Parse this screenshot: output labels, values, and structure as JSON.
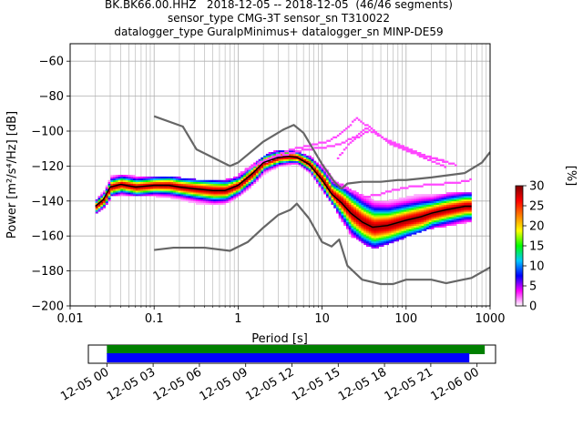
{
  "title": {
    "line1": "BK.BK66.00.HHZ   2018-12-05 -- 2018-12-05  (46/46 segments)",
    "line2": "sensor_type CMG-3T sensor_sn T310022",
    "line3": "datalogger_type GuralpMinimus+ datalogger_sn MINP-DE59"
  },
  "chart_data": [
    {
      "type": "heatmap",
      "xlabel": "Period [s]",
      "ylabel": "Power [m²/s⁴/Hz] [dB]",
      "xscale": "log",
      "xlim": [
        0.01,
        1000
      ],
      "ylim": [
        -200,
        -50
      ],
      "grid": true,
      "xticks": [
        "0.01",
        "0.1",
        "1",
        "10",
        "100",
        "1000"
      ],
      "xtick_values": [
        0.01,
        0.1,
        1,
        10,
        100,
        1000
      ],
      "yticks": [
        "−200",
        "−180",
        "−160",
        "−140",
        "−120",
        "−100",
        "−80",
        "−60"
      ],
      "ytick_values": [
        -200,
        -180,
        -160,
        -140,
        -120,
        -100,
        -80,
        -60
      ],
      "colorbar": {
        "label": "[%]",
        "range": [
          0,
          30
        ],
        "ticks": [
          "0",
          "5",
          "10",
          "15",
          "20",
          "25",
          "30"
        ],
        "tick_values": [
          0,
          5,
          10,
          15,
          20,
          25,
          30
        ],
        "colors": [
          "#ffffff",
          "#ff00ff",
          "#0000ff",
          "#00c8ff",
          "#00ff00",
          "#ffff00",
          "#ff8000",
          "#ff0000",
          "#800000"
        ]
      },
      "nlnm": {
        "color": "#666666",
        "period": [
          0.1,
          0.17,
          0.4,
          0.8,
          1.3,
          2.0,
          3.0,
          4.2,
          5.0,
          7.0,
          10,
          13,
          16,
          20,
          30,
          50,
          70,
          100,
          200,
          300,
          600,
          1000
        ],
        "power": [
          -168,
          -166.7,
          -166.7,
          -168.5,
          -163.5,
          -155.2,
          -148,
          -145,
          -141.5,
          -150,
          -163.5,
          -166,
          -162,
          -177,
          -185,
          -187.5,
          -187.5,
          -185,
          -185,
          -187,
          -184,
          -178
        ]
      },
      "nhnm": {
        "color": "#666666",
        "period": [
          0.1,
          0.22,
          0.32,
          0.8,
          1.0,
          2.0,
          3.5,
          4.6,
          6.0,
          10,
          14,
          17,
          20,
          30,
          50,
          80,
          100,
          200,
          500,
          800,
          1000
        ],
        "power": [
          -91.5,
          -97.4,
          -110.5,
          -120,
          -118,
          -106,
          -99,
          -96.5,
          -101,
          -119,
          -129,
          -133,
          -130,
          -129,
          -129,
          -128,
          -128,
          -126.5,
          -124,
          -118,
          -112
        ]
      },
      "mean": {
        "color": "#000000",
        "period": [
          0.02,
          0.025,
          0.03,
          0.04,
          0.06,
          0.1,
          0.15,
          0.2,
          0.3,
          0.5,
          0.7,
          1.0,
          1.5,
          2.0,
          3.0,
          4.0,
          5.0,
          7.0,
          10,
          13,
          17,
          22,
          30,
          40,
          60,
          100,
          150,
          200,
          300,
          500,
          600
        ],
        "power": [
          -143,
          -139,
          -132,
          -130.5,
          -132,
          -131,
          -131,
          -132,
          -133,
          -134,
          -134,
          -131,
          -124,
          -118,
          -115,
          -114.5,
          -115,
          -119,
          -128,
          -136,
          -141,
          -147,
          -152,
          -155,
          -154,
          -151,
          -149,
          -147,
          -145,
          -143,
          -143
        ]
      },
      "density_band": {
        "period": [
          0.02,
          0.025,
          0.03,
          0.04,
          0.06,
          0.1,
          0.15,
          0.2,
          0.3,
          0.5,
          0.7,
          1.0,
          1.5,
          2.0,
          3.0,
          4.0,
          5.0,
          7.0,
          10,
          13,
          17,
          22,
          30,
          40,
          60,
          100,
          150,
          200,
          300,
          500,
          600
        ],
        "low": [
          -147,
          -143,
          -137,
          -136,
          -137,
          -137,
          -138,
          -139,
          -141,
          -142,
          -141,
          -137,
          -130,
          -124,
          -120,
          -119,
          -119,
          -124,
          -134,
          -142,
          -152,
          -160,
          -164,
          -167,
          -164,
          -160,
          -157,
          -155,
          -154,
          -152,
          -152
        ],
        "high": [
          -139,
          -134,
          -126,
          -125,
          -126,
          -126,
          -126,
          -127,
          -128,
          -128,
          -128,
          -126,
          -119,
          -114,
          -111,
          -111,
          -112,
          -115,
          -121,
          -128,
          -131,
          -134,
          -137,
          -140,
          -140,
          -138,
          -136,
          -137,
          -136,
          -135,
          -135
        ]
      },
      "outlier_curves": [
        {
          "period": [
            1,
            2,
            4,
            8,
            12,
            18,
            25,
            40,
            60,
            100,
            200,
            400
          ],
          "power": [
            -125,
            -117,
            -111,
            -108,
            -106,
            -100,
            -93,
            -100,
            -107,
            -112,
            -116,
            -120
          ]
        },
        {
          "period": [
            1.2,
            3,
            6,
            10,
            16,
            25,
            35,
            50,
            80,
            150,
            300
          ],
          "power": [
            -122,
            -115,
            -111,
            -110,
            -108,
            -103,
            -98,
            -104,
            -108,
            -114,
            -118
          ]
        },
        {
          "period": [
            10,
            14,
            20,
            30,
            45,
            70,
            120,
            200,
            400,
            600
          ],
          "power": [
            -120,
            -130,
            -134,
            -138,
            -137,
            -134,
            -132,
            -131,
            -130,
            -128
          ]
        },
        {
          "period": [
            15,
            22,
            35,
            60,
            100,
            180,
            300
          ],
          "power": [
            -116,
            -106,
            -100,
            -106,
            -111,
            -117,
            -121
          ]
        }
      ]
    },
    {
      "type": "timeline",
      "xticks": [
        "12-05 00",
        "12-05 03",
        "12-05 06",
        "12-05 09",
        "12-05 12",
        "12-05 15",
        "12-05 18",
        "12-05 21",
        "12-06 00"
      ],
      "tick_hours": [
        0,
        3,
        6,
        9,
        12,
        15,
        18,
        21,
        24
      ],
      "xlim_hours": [
        -1.2,
        25.2
      ],
      "bars": [
        {
          "color": "#008000",
          "start_hour": 0,
          "end_hour": 24.5
        },
        {
          "color": "#0000ff",
          "start_hour": 0,
          "end_hour": 23.5
        }
      ]
    }
  ]
}
